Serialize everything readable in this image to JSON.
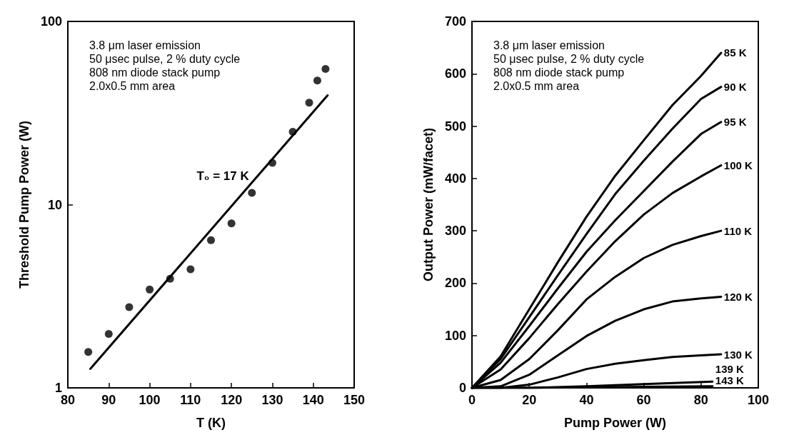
{
  "chart_data": [
    {
      "type": "scatter",
      "xlabel": "T (K)",
      "ylabel": "Threshold Pump Power (W)",
      "log": "y",
      "xlim": [
        80,
        150
      ],
      "xticks": [
        80,
        90,
        100,
        110,
        120,
        130,
        140,
        150
      ],
      "ylim": [
        1,
        100
      ],
      "yticks": [
        1,
        10,
        100
      ],
      "grid": false,
      "legend": false,
      "marker": "circle",
      "annotations": [
        "3.8 μm laser emission",
        "50 μsec pulse, 2 % duty cycle",
        "808 nm diode stack pump",
        "2.0x0.5 mm area",
        {
          "text": "T₀ = 17 K",
          "x": 125.7,
          "y": 13.8
        }
      ],
      "series": [
        {
          "color": "#000000",
          "x": [
            85,
            90,
            95,
            100,
            105,
            110,
            115,
            120,
            125,
            130,
            135,
            139,
            141,
            143
          ],
          "values": [
            1.57,
            1.97,
            2.76,
            3.44,
            3.94,
            4.44,
            6.4,
            7.9,
            11.6,
            16.9,
            25,
            36,
            47.6,
            55
          ]
        },
        {
          "type": "line",
          "color": "#000000",
          "line_style": "solid",
          "marker": "none",
          "x": [
            85.5,
            143.5
          ],
          "values": [
            1.27,
            39.5
          ]
        }
      ]
    },
    {
      "type": "line",
      "xlabel": "Pump Power (W)",
      "ylabel": "Output Power (mW/facet)",
      "xlim": [
        0,
        100
      ],
      "xticks": [
        0,
        20,
        40,
        60,
        80,
        100
      ],
      "ylim": [
        0,
        700
      ],
      "yticks": [
        0,
        100,
        200,
        300,
        400,
        500,
        600,
        700
      ],
      "grid": false,
      "legend": false,
      "marker": "none",
      "line_style": "solid",
      "annotations": [
        "3.8 μm laser emission",
        "50 μsec pulse, 2 % duty cycle",
        "808 nm diode stack pump",
        "2.0x0.5 mm area"
      ],
      "x": [
        0,
        10,
        20,
        30,
        40,
        50,
        60,
        70,
        80,
        87
      ],
      "series": [
        {
          "name": "85 K",
          "color": "#000000",
          "values": [
            0,
            60,
            150,
            240,
            327,
            405,
            473,
            540,
            596,
            640
          ]
        },
        {
          "name": "90 K",
          "color": "#000000",
          "values": [
            0,
            55,
            135,
            215,
            294,
            370,
            434,
            495,
            552,
            575
          ]
        },
        {
          "name": "95 K",
          "color": "#000000",
          "values": [
            0,
            48,
            118,
            190,
            260,
            320,
            376,
            432,
            485,
            508
          ]
        },
        {
          "name": "100 K",
          "color": "#000000",
          "values": [
            0,
            35,
            95,
            160,
            222,
            280,
            331,
            372,
            404,
            425
          ]
        },
        {
          "name": "110 K",
          "color": "#000000",
          "values": [
            0,
            15,
            55,
            110,
            169,
            212,
            248,
            273,
            290,
            300
          ]
        },
        {
          "name": "120 K",
          "color": "#000000",
          "values": [
            0,
            3,
            25,
            62,
            99,
            128,
            150,
            165,
            171,
            174
          ]
        },
        {
          "name": "130 K",
          "color": "#000000",
          "values": [
            0,
            0,
            6,
            20,
            36,
            46,
            53,
            59,
            62,
            64
          ]
        },
        {
          "name": "139 K",
          "color": "#000000",
          "x": [
            0,
            20,
            40,
            60,
            84
          ],
          "values": [
            0,
            0,
            3,
            7,
            12
          ]
        },
        {
          "name": "143 K",
          "color": "#000000",
          "x": [
            0,
            20,
            40,
            60,
            84
          ],
          "values": [
            0,
            0,
            1,
            2,
            3
          ]
        }
      ]
    }
  ]
}
